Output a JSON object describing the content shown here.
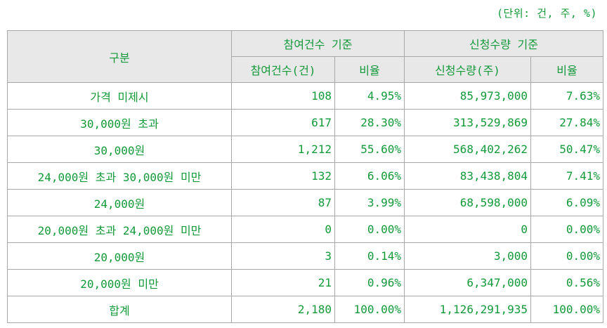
{
  "unit_note": "(단위: 건, 주, %)",
  "header": {
    "category": "구분",
    "group1": "참여건수 기준",
    "group2": "신청수량 기준",
    "col_count": "참여건수(건)",
    "col_ratio1": "비율",
    "col_qty": "신청수량(주)",
    "col_ratio2": "비율"
  },
  "rows": [
    {
      "label": "가격 미제시",
      "count": "108",
      "ratio1": "4.95%",
      "qty": "85,973,000",
      "ratio2": "7.63%"
    },
    {
      "label": "30,000원 초과",
      "count": "617",
      "ratio1": "28.30%",
      "qty": "313,529,869",
      "ratio2": "27.84%"
    },
    {
      "label": "30,000원",
      "count": "1,212",
      "ratio1": "55.60%",
      "qty": "568,402,262",
      "ratio2": "50.47%"
    },
    {
      "label": "24,000원 초과 30,000원 미만",
      "count": "132",
      "ratio1": "6.06%",
      "qty": "83,438,804",
      "ratio2": "7.41%"
    },
    {
      "label": "24,000원",
      "count": "87",
      "ratio1": "3.99%",
      "qty": "68,598,000",
      "ratio2": "6.09%"
    },
    {
      "label": "20,000원 초과 24,000원 미만",
      "count": "0",
      "ratio1": "0.00%",
      "qty": "0",
      "ratio2": "0.00%"
    },
    {
      "label": "20,000원",
      "count": "3",
      "ratio1": "0.14%",
      "qty": "3,000",
      "ratio2": "0.00%"
    },
    {
      "label": "20,000원 미만",
      "count": "21",
      "ratio1": "0.96%",
      "qty": "6,347,000",
      "ratio2": "0.56%"
    },
    {
      "label": "합계",
      "count": "2,180",
      "ratio1": "100.00%",
      "qty": "1,126,291,935",
      "ratio2": "100.00%"
    }
  ]
}
